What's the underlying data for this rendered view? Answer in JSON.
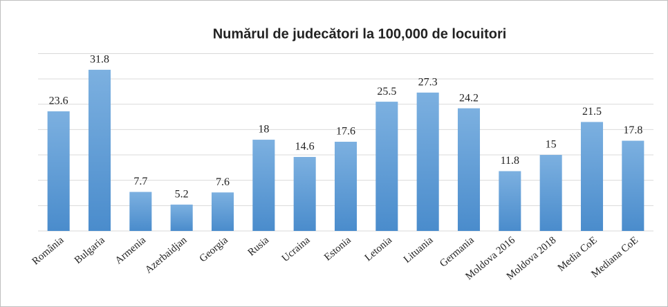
{
  "chart_data": {
    "type": "bar",
    "title": "Numărul de judecători la 100,000 de locuitori",
    "categories": [
      "România",
      "Bulgaria",
      "Armenia",
      "Azerbaidjan",
      "Georgia",
      "Rusia",
      "Ucraina",
      "Estonia",
      "Letonia",
      "Lituania",
      "Germania",
      "Moldova 2016",
      "Moldova 2018",
      "Media CoE",
      "Mediana CoE"
    ],
    "values": [
      23.6,
      31.8,
      7.7,
      5.2,
      7.6,
      18,
      14.6,
      17.6,
      25.5,
      27.3,
      24.2,
      11.8,
      15,
      21.5,
      17.8
    ],
    "color": "#5b9bd5",
    "ylim": [
      0,
      35
    ],
    "yticks": [
      0,
      5,
      10,
      15,
      20,
      25,
      30,
      35
    ],
    "grid": true
  }
}
